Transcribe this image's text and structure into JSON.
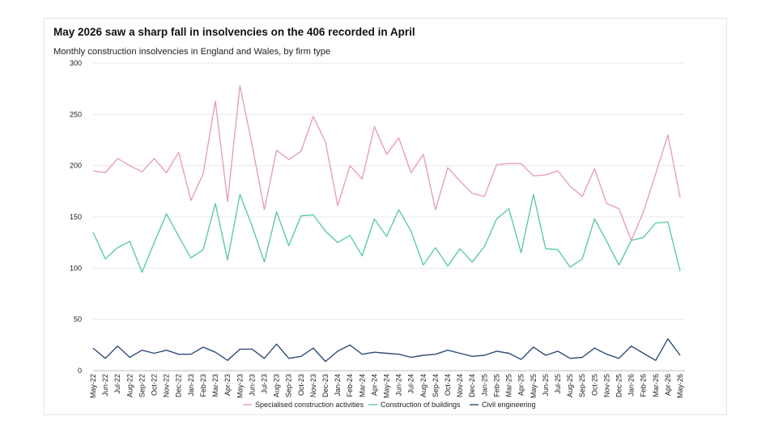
{
  "title": "May 2026 saw a sharp  fall in insolvencies on the 406 recorded in April",
  "subtitle": "Monthly construction insolvencies in England and Wales, by firm type",
  "chart_data": {
    "type": "line",
    "categories": [
      "May-22",
      "Jun-22",
      "Jul-22",
      "Aug-22",
      "Sep-22",
      "Oct-22",
      "Nov-22",
      "Dec-22",
      "Jan-23",
      "Feb-23",
      "Mar-23",
      "Apr-23",
      "May-23",
      "Jun-23",
      "Jul-23",
      "Aug-23",
      "Sep-23",
      "Oct-23",
      "Nov-23",
      "Dec-23",
      "Jan-24",
      "Feb-24",
      "Mar-24",
      "Apr-24",
      "May-24",
      "Jun-24",
      "Jul-24",
      "Aug-24",
      "Sep-24",
      "Oct-24",
      "Nov-24",
      "Dec-24",
      "Jan-25",
      "Feb-25",
      "Mar-25",
      "Apr-25",
      "May-25",
      "Jun-25",
      "Jul-25",
      "Aug-25",
      "Sep-25",
      "Oct-25",
      "Nov-25",
      "Dec-25",
      "Jan-26",
      "Feb-26",
      "Mar-26",
      "Apr-26",
      "May-26"
    ],
    "ylim": [
      0,
      300
    ],
    "yticks": [
      0,
      50,
      100,
      150,
      200,
      250,
      300
    ],
    "grid": true,
    "legend_position": "bottom",
    "series": [
      {
        "name": "Specialised construction activities",
        "color": "#e8a0b0",
        "values": [
          195,
          193,
          207,
          200,
          194,
          207,
          193,
          213,
          166,
          192,
          263,
          165,
          278,
          220,
          157,
          215,
          206,
          214,
          248,
          223,
          161,
          200,
          187,
          238,
          211,
          227,
          193,
          211,
          157,
          198,
          185,
          173,
          170,
          201,
          202,
          202,
          190,
          191,
          195,
          180,
          170,
          197,
          163,
          158,
          127,
          155,
          192,
          230,
          169
        ]
      },
      {
        "name": "Construction of buildings",
        "color": "#5fcc9c",
        "values": [
          135,
          109,
          120,
          126,
          96,
          125,
          153,
          131,
          110,
          118,
          163,
          108,
          172,
          141,
          106,
          155,
          122,
          151,
          152,
          136,
          125,
          132,
          112,
          148,
          131,
          157,
          136,
          103,
          120,
          102,
          119,
          106,
          121,
          148,
          158,
          115,
          172,
          119,
          118,
          101,
          109,
          148,
          126,
          103,
          127,
          130,
          144,
          145,
          97
        ]
      },
      {
        "name": "Civil engineering",
        "color": "#2e4d78",
        "values": [
          22,
          12,
          24,
          13,
          20,
          17,
          20,
          16,
          16,
          23,
          18,
          10,
          21,
          21,
          12,
          26,
          12,
          14,
          22,
          9,
          19,
          25,
          16,
          18,
          17,
          16,
          13,
          15,
          16,
          20,
          17,
          14,
          15,
          19,
          17,
          11,
          23,
          15,
          19,
          12,
          13,
          22,
          16,
          12,
          24,
          17,
          10,
          31,
          15
        ]
      }
    ]
  }
}
